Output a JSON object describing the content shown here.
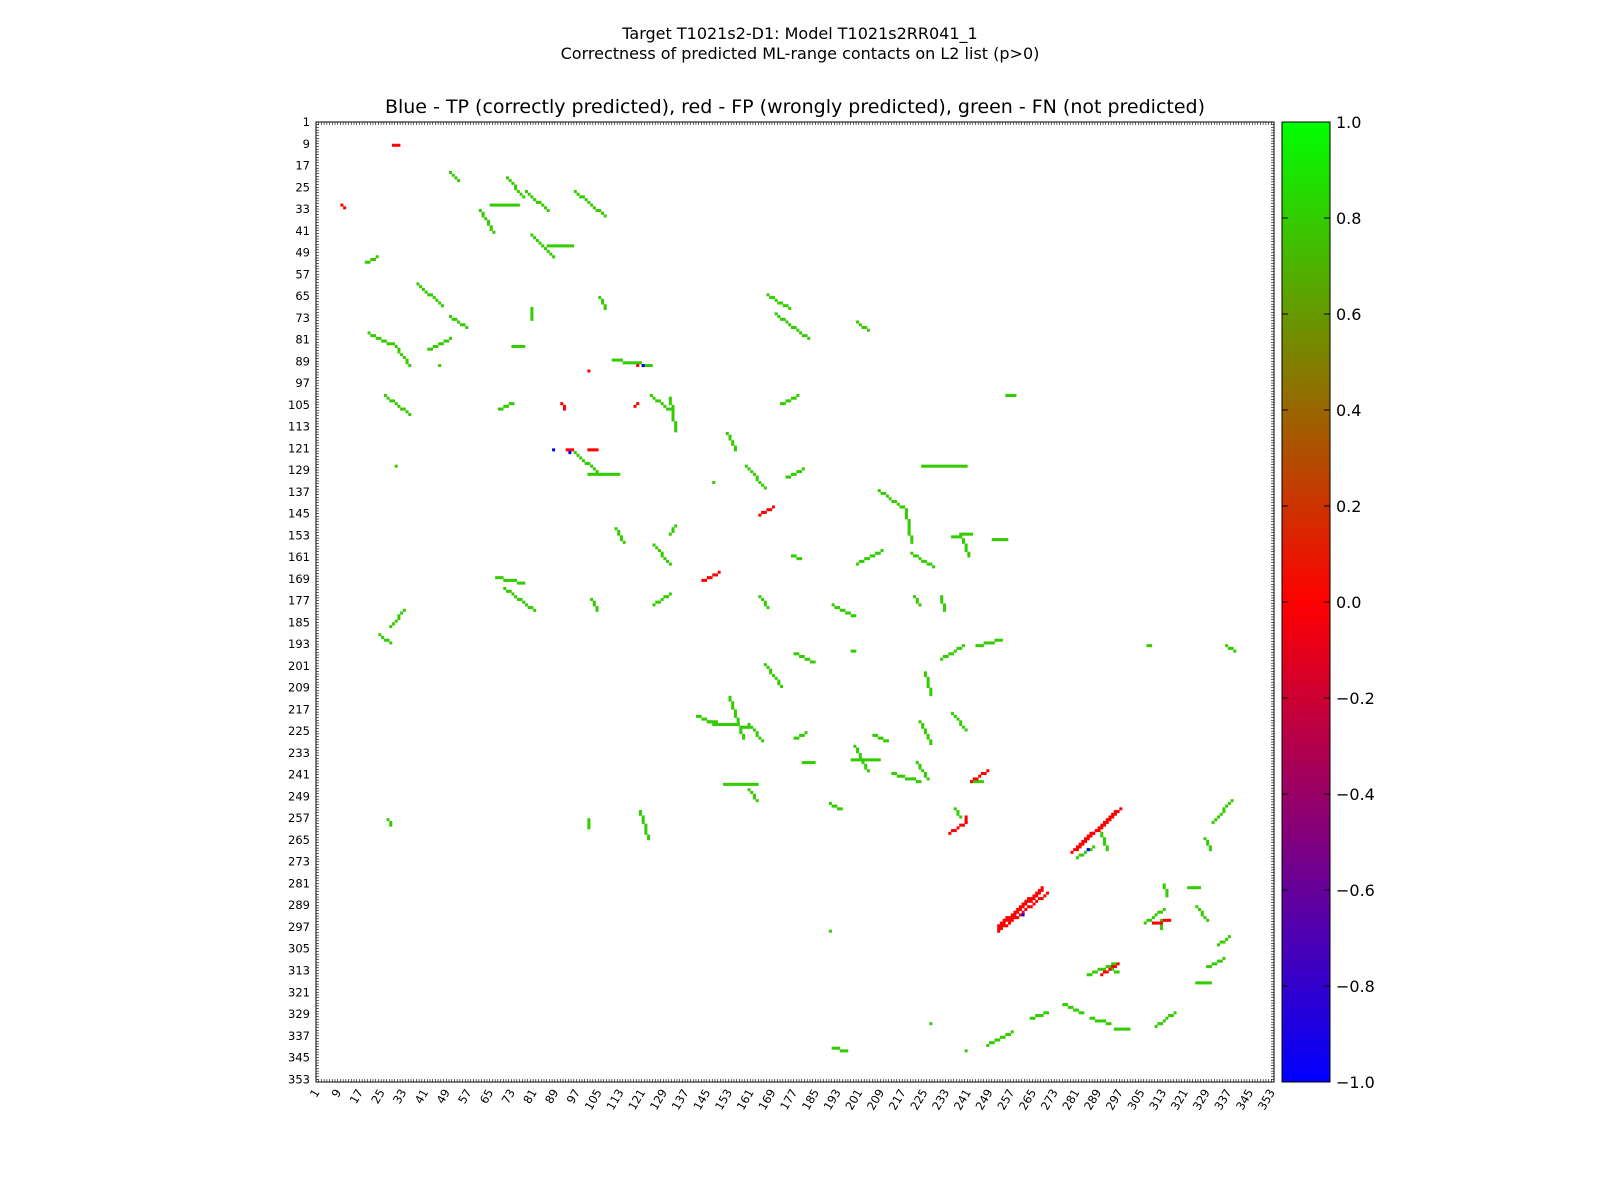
{
  "figure": {
    "title_line1": "Target T1021s2-D1: Model T1021s2RR041_1",
    "title_line2": "Correctness of predicted ML-range contacts on L2 list (p>0)",
    "plot_title": "Blue - TP (correctly predicted), red - FP (wrongly predicted), green - FN (not predicted)"
  },
  "chart_data": {
    "type": "heatmap",
    "title": "Blue - TP (correctly predicted), red - FP (wrongly predicted), green - FN (not predicted)",
    "xlabel": "",
    "ylabel": "",
    "xlim": [
      1,
      354
    ],
    "ylim": [
      1,
      354
    ],
    "y_inverted": true,
    "grid": false,
    "tick_labels": [
      "1",
      "9",
      "17",
      "25",
      "33",
      "41",
      "49",
      "57",
      "65",
      "73",
      "81",
      "89",
      "97",
      "105",
      "113",
      "121",
      "129",
      "137",
      "145",
      "153",
      "161",
      "169",
      "177",
      "185",
      "193",
      "201",
      "209",
      "217",
      "225",
      "233",
      "241",
      "249",
      "257",
      "265",
      "273",
      "281",
      "289",
      "297",
      "305",
      "313",
      "321",
      "329",
      "337",
      "345",
      "353"
    ],
    "colorbar": {
      "range": [
        -1.0,
        1.0
      ],
      "ticks": [
        "1.0",
        "0.8",
        "0.6",
        "0.4",
        "0.2",
        "0.0",
        "−0.2",
        "−0.4",
        "−0.6",
        "−0.8",
        "−1.0"
      ],
      "colors": [
        "#00ff00",
        "#ff0000",
        "#0000ff"
      ],
      "placement": "right"
    },
    "categories": [
      {
        "name": "TP",
        "value": -1,
        "color": "#0000ff"
      },
      {
        "name": "FP",
        "value": 0,
        "color": "#ff0000"
      },
      {
        "name": "FN",
        "value": 1,
        "color": "#33cc00"
      }
    ],
    "fn_segments": [
      [
        [
          50,
          19
        ],
        [
          53,
          22
        ]
      ],
      [
        [
          71,
          21
        ],
        [
          77,
          28
        ]
      ],
      [
        [
          78,
          26
        ],
        [
          86,
          33
        ]
      ],
      [
        [
          96,
          26
        ],
        [
          107,
          35
        ]
      ],
      [
        [
          65,
          31
        ],
        [
          75,
          31
        ]
      ],
      [
        [
          61,
          33
        ],
        [
          66,
          41
        ]
      ],
      [
        [
          80,
          42
        ],
        [
          88,
          50
        ]
      ],
      [
        [
          86,
          46
        ],
        [
          95,
          46
        ]
      ],
      [
        [
          19,
          52
        ],
        [
          23,
          50
        ]
      ],
      [
        [
          38,
          60
        ],
        [
          47,
          68
        ]
      ],
      [
        [
          105,
          65
        ],
        [
          107,
          69
        ]
      ],
      [
        [
          80,
          69
        ],
        [
          80,
          73
        ]
      ],
      [
        [
          50,
          72
        ],
        [
          56,
          76
        ]
      ],
      [
        [
          167,
          64
        ],
        [
          175,
          69
        ]
      ],
      [
        [
          170,
          71
        ],
        [
          182,
          80
        ]
      ],
      [
        [
          200,
          74
        ],
        [
          204,
          77
        ]
      ],
      [
        [
          20,
          78
        ],
        [
          28,
          82
        ]
      ],
      [
        [
          29,
          82
        ],
        [
          35,
          90
        ]
      ],
      [
        [
          42,
          84
        ],
        [
          50,
          80
        ]
      ],
      [
        [
          46,
          90
        ],
        [
          46,
          90
        ]
      ],
      [
        [
          73,
          83
        ],
        [
          77,
          83
        ]
      ],
      [
        [
          110,
          88
        ],
        [
          124,
          90
        ]
      ],
      [
        [
          26,
          101
        ],
        [
          35,
          108
        ]
      ],
      [
        [
          68,
          106
        ],
        [
          73,
          104
        ]
      ],
      [
        [
          124,
          101
        ],
        [
          132,
          107
        ]
      ],
      [
        [
          172,
          104
        ],
        [
          178,
          101
        ]
      ],
      [
        [
          255,
          101
        ],
        [
          258,
          101
        ]
      ],
      [
        [
          96,
          122
        ],
        [
          105,
          130
        ]
      ],
      [
        [
          101,
          130
        ],
        [
          112,
          130
        ]
      ],
      [
        [
          159,
          127
        ],
        [
          166,
          135
        ]
      ],
      [
        [
          152,
          115
        ],
        [
          155,
          121
        ]
      ],
      [
        [
          174,
          131
        ],
        [
          180,
          128
        ]
      ],
      [
        [
          147,
          133
        ],
        [
          147,
          133
        ]
      ],
      [
        [
          131,
          102
        ],
        [
          133,
          114
        ]
      ],
      [
        [
          30,
          127
        ],
        [
          30,
          127
        ]
      ],
      [
        [
          208,
          136
        ],
        [
          218,
          143
        ]
      ],
      [
        [
          224,
          127
        ],
        [
          240,
          127
        ]
      ],
      [
        [
          111,
          150
        ],
        [
          114,
          155
        ]
      ],
      [
        [
          125,
          156
        ],
        [
          131,
          163
        ]
      ],
      [
        [
          176,
          160
        ],
        [
          179,
          161
        ]
      ],
      [
        [
          200,
          163
        ],
        [
          209,
          158
        ]
      ],
      [
        [
          220,
          159
        ],
        [
          228,
          164
        ]
      ],
      [
        [
          235,
          153
        ],
        [
          242,
          152
        ]
      ],
      [
        [
          238,
          152
        ],
        [
          241,
          160
        ]
      ],
      [
        [
          250,
          154
        ],
        [
          255,
          154
        ]
      ],
      [
        [
          218,
          144
        ],
        [
          220,
          155
        ]
      ],
      [
        [
          131,
          152
        ],
        [
          133,
          149
        ]
      ],
      [
        [
          67,
          168
        ],
        [
          77,
          170
        ]
      ],
      [
        [
          70,
          172
        ],
        [
          81,
          180
        ]
      ],
      [
        [
          102,
          176
        ],
        [
          104,
          180
        ]
      ],
      [
        [
          164,
          175
        ],
        [
          167,
          179
        ]
      ],
      [
        [
          125,
          178
        ],
        [
          131,
          174
        ]
      ],
      [
        [
          191,
          178
        ],
        [
          199,
          182
        ]
      ],
      [
        [
          221,
          175
        ],
        [
          223,
          178
        ]
      ],
      [
        [
          231,
          175
        ],
        [
          232,
          180
        ]
      ],
      [
        [
          28,
          186
        ],
        [
          33,
          180
        ]
      ],
      [
        [
          24,
          189
        ],
        [
          28,
          192
        ]
      ],
      [
        [
          244,
          193
        ],
        [
          253,
          191
        ]
      ],
      [
        [
          177,
          196
        ],
        [
          184,
          199
        ]
      ],
      [
        [
          198,
          195
        ],
        [
          199,
          195
        ]
      ],
      [
        [
          231,
          198
        ],
        [
          239,
          193
        ]
      ],
      [
        [
          225,
          203
        ],
        [
          227,
          211
        ]
      ],
      [
        [
          336,
          193
        ],
        [
          339,
          195
        ]
      ],
      [
        [
          307,
          193
        ],
        [
          308,
          193
        ]
      ],
      [
        [
          166,
          200
        ],
        [
          172,
          208
        ]
      ],
      [
        [
          153,
          212
        ],
        [
          158,
          227
        ]
      ],
      [
        [
          141,
          219
        ],
        [
          148,
          222
        ]
      ],
      [
        [
          145,
          221
        ],
        [
          160,
          223
        ]
      ],
      [
        [
          160,
          222
        ],
        [
          165,
          228
        ]
      ],
      [
        [
          177,
          227
        ],
        [
          181,
          225
        ]
      ],
      [
        [
          199,
          230
        ],
        [
          204,
          239
        ]
      ],
      [
        [
          206,
          226
        ],
        [
          211,
          228
        ]
      ],
      [
        [
          223,
          221
        ],
        [
          227,
          229
        ]
      ],
      [
        [
          235,
          218
        ],
        [
          240,
          224
        ]
      ],
      [
        [
          198,
          235
        ],
        [
          208,
          235
        ]
      ],
      [
        [
          180,
          236
        ],
        [
          184,
          236
        ]
      ],
      [
        [
          213,
          240
        ],
        [
          223,
          243
        ]
      ],
      [
        [
          222,
          236
        ],
        [
          226,
          242
        ]
      ],
      [
        [
          151,
          244
        ],
        [
          163,
          244
        ]
      ],
      [
        [
          160,
          246
        ],
        [
          163,
          250
        ]
      ],
      [
        [
          190,
          251
        ],
        [
          194,
          253
        ]
      ],
      [
        [
          236,
          253
        ],
        [
          238,
          256
        ]
      ],
      [
        [
          120,
          254
        ],
        [
          123,
          264
        ]
      ],
      [
        [
          27,
          257
        ],
        [
          28,
          259
        ]
      ],
      [
        [
          101,
          257
        ],
        [
          101,
          260
        ]
      ],
      [
        [
          242,
          243
        ],
        [
          246,
          243
        ]
      ],
      [
        [
          331,
          258
        ],
        [
          338,
          250
        ]
      ],
      [
        [
          328,
          264
        ],
        [
          330,
          268
        ]
      ],
      [
        [
          290,
          262
        ],
        [
          292,
          268
        ]
      ],
      [
        [
          281,
          271
        ],
        [
          287,
          267
        ]
      ],
      [
        [
          322,
          282
        ],
        [
          326,
          282
        ]
      ],
      [
        [
          325,
          289
        ],
        [
          329,
          294
        ]
      ],
      [
        [
          313,
          281
        ],
        [
          314,
          285
        ]
      ],
      [
        [
          306,
          295
        ],
        [
          313,
          290
        ]
      ],
      [
        [
          312,
          294
        ],
        [
          312,
          297
        ]
      ],
      [
        [
          333,
          303
        ],
        [
          337,
          300
        ]
      ],
      [
        [
          329,
          311
        ],
        [
          335,
          308
        ]
      ],
      [
        [
          325,
          317
        ],
        [
          330,
          317
        ]
      ],
      [
        [
          285,
          314
        ],
        [
          295,
          310
        ]
      ],
      [
        [
          292,
          311
        ],
        [
          296,
          313
        ]
      ],
      [
        [
          276,
          325
        ],
        [
          283,
          328
        ]
      ],
      [
        [
          286,
          330
        ],
        [
          293,
          332
        ]
      ],
      [
        [
          295,
          334
        ],
        [
          300,
          334
        ]
      ],
      [
        [
          310,
          333
        ],
        [
          317,
          328
        ]
      ],
      [
        [
          248,
          340
        ],
        [
          257,
          335
        ]
      ],
      [
        [
          264,
          330
        ],
        [
          270,
          328
        ]
      ],
      [
        [
          191,
          341
        ],
        [
          196,
          342
        ]
      ],
      [
        [
          240,
          342
        ],
        [
          240,
          342
        ]
      ],
      [
        [
          190,
          298
        ],
        [
          190,
          298
        ]
      ],
      [
        [
          227,
          332
        ],
        [
          227,
          332
        ]
      ]
    ],
    "fp_segments": [
      [
        [
          29,
          9
        ],
        [
          31,
          9
        ]
      ],
      [
        [
          10,
          31
        ],
        [
          11,
          32
        ]
      ],
      [
        [
          242,
          243
        ],
        [
          248,
          239
        ]
      ],
      [
        [
          234,
          262
        ],
        [
          240,
          258
        ]
      ],
      [
        [
          240,
          258
        ],
        [
          240,
          256
        ]
      ],
      [
        [
          279,
          269
        ],
        [
          295,
          254
        ]
      ],
      [
        [
          281,
          268
        ],
        [
          297,
          253
        ]
      ],
      [
        [
          252,
          296
        ],
        [
          268,
          282
        ]
      ],
      [
        [
          252,
          298
        ],
        [
          270,
          284
        ]
      ],
      [
        [
          252,
          297
        ],
        [
          268,
          283
        ]
      ],
      [
        [
          309,
          295
        ],
        [
          315,
          294
        ]
      ],
      [
        [
          290,
          314
        ],
        [
          296,
          310
        ]
      ],
      [
        [
          93,
          121
        ],
        [
          95,
          121
        ]
      ],
      [
        [
          101,
          121
        ],
        [
          104,
          121
        ]
      ],
      [
        [
          118,
          105
        ],
        [
          119,
          104
        ]
      ],
      [
        [
          119,
          90
        ],
        [
          119,
          90
        ]
      ],
      [
        [
          91,
          104
        ],
        [
          92,
          106
        ]
      ],
      [
        [
          164,
          145
        ],
        [
          169,
          142
        ]
      ],
      [
        [
          143,
          169
        ],
        [
          149,
          166
        ]
      ],
      [
        [
          101,
          92
        ],
        [
          101,
          92
        ]
      ]
    ],
    "tp_points": [
      [
        121,
        90
      ],
      [
        94,
        122
      ],
      [
        261,
        292
      ],
      [
        285,
        268
      ],
      [
        88,
        121
      ]
    ]
  }
}
